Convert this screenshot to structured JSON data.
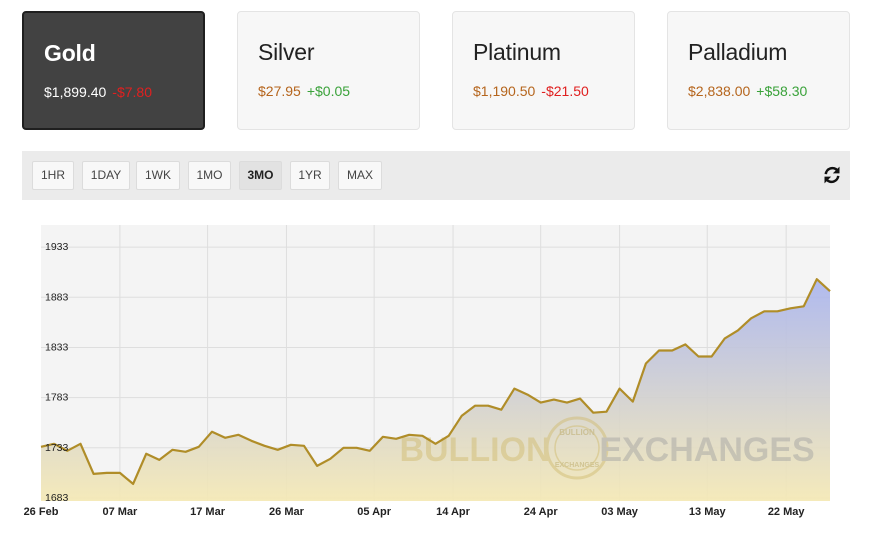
{
  "metals": [
    {
      "name": "Gold",
      "price": "$1,899.40",
      "change": "-$7.80",
      "direction": "neg",
      "active": true
    },
    {
      "name": "Silver",
      "price": "$27.95",
      "change": "+$0.05",
      "direction": "pos",
      "active": false
    },
    {
      "name": "Platinum",
      "price": "$1,190.50",
      "change": "-$21.50",
      "direction": "neg",
      "active": false
    },
    {
      "name": "Palladium",
      "price": "$2,838.00",
      "change": "+$58.30",
      "direction": "pos",
      "active": false
    }
  ],
  "ranges": [
    {
      "label": "1HR",
      "selected": false
    },
    {
      "label": "1DAY",
      "selected": false
    },
    {
      "label": "1WK",
      "selected": false
    },
    {
      "label": "1MO",
      "selected": false
    },
    {
      "label": "3MO",
      "selected": true
    },
    {
      "label": "1YR",
      "selected": false
    },
    {
      "label": "MAX",
      "selected": false
    }
  ],
  "refresh_icon": "refresh-icon",
  "watermark": {
    "left": "BULLION",
    "right": "EXCHANGES",
    "seal_top": "BULLION",
    "seal_bottom": "EXCHANGES"
  },
  "colors": {
    "accent_price": "#b5651d",
    "negative": "#e02020",
    "positive": "#3aa23a",
    "line": "#b08d28",
    "fill_top": "#a9b4ee",
    "fill_bottom": "#f5e9b4"
  },
  "chart_data": {
    "type": "area",
    "title": "",
    "xlabel": "",
    "ylabel": "",
    "yticks": [
      1683,
      1733,
      1783,
      1833,
      1883,
      1933
    ],
    "ylim": [
      1680,
      1955
    ],
    "xlim": [
      "2021-02-26",
      "2021-05-27"
    ],
    "xtick_labels": [
      {
        "date": "2021-02-26",
        "label": "26 Feb"
      },
      {
        "date": "2021-03-07",
        "label": "07 Mar"
      },
      {
        "date": "2021-03-17",
        "label": "17 Mar"
      },
      {
        "date": "2021-03-26",
        "label": "26 Mar"
      },
      {
        "date": "2021-04-05",
        "label": "05 Apr"
      },
      {
        "date": "2021-04-14",
        "label": "14 Apr"
      },
      {
        "date": "2021-04-24",
        "label": "24 Apr"
      },
      {
        "date": "2021-05-03",
        "label": "03 May"
      },
      {
        "date": "2021-05-13",
        "label": "13 May"
      },
      {
        "date": "2021-05-22",
        "label": "22 May"
      }
    ],
    "grid": true,
    "series": [
      {
        "points": [
          [
            "2021-02-26",
            1734
          ],
          [
            "2021-02-27",
            1737
          ],
          [
            "2021-02-28",
            1730
          ],
          [
            "2021-03-01",
            1737
          ],
          [
            "2021-03-02",
            1707
          ],
          [
            "2021-03-03",
            1708
          ],
          [
            "2021-03-04",
            1708
          ],
          [
            "2021-03-05",
            1697
          ],
          [
            "2021-03-06",
            1727
          ],
          [
            "2021-03-07",
            1721
          ],
          [
            "2021-03-08",
            1731
          ],
          [
            "2021-03-09",
            1729
          ],
          [
            "2021-03-10",
            1734
          ],
          [
            "2021-03-11",
            1749
          ],
          [
            "2021-03-12",
            1743
          ],
          [
            "2021-03-13",
            1746
          ],
          [
            "2021-03-14",
            1740
          ],
          [
            "2021-03-15",
            1735
          ],
          [
            "2021-03-16",
            1731
          ],
          [
            "2021-03-17",
            1736
          ],
          [
            "2021-03-18",
            1735
          ],
          [
            "2021-03-19",
            1715
          ],
          [
            "2021-03-20",
            1722
          ],
          [
            "2021-03-21",
            1733
          ],
          [
            "2021-03-22",
            1733
          ],
          [
            "2021-03-23",
            1730
          ],
          [
            "2021-03-24",
            1744
          ],
          [
            "2021-03-25",
            1742
          ],
          [
            "2021-03-26",
            1746
          ],
          [
            "2021-03-27",
            1745
          ],
          [
            "2021-03-28",
            1737
          ],
          [
            "2021-03-29",
            1745
          ],
          [
            "2021-03-30",
            1765
          ],
          [
            "2021-03-31",
            1775
          ],
          [
            "2021-04-01",
            1775
          ],
          [
            "2021-04-02",
            1771
          ],
          [
            "2021-04-03",
            1792
          ],
          [
            "2021-04-04",
            1786
          ],
          [
            "2021-04-05",
            1778
          ],
          [
            "2021-04-06",
            1781
          ],
          [
            "2021-04-07",
            1778
          ],
          [
            "2021-04-08",
            1782
          ],
          [
            "2021-04-09",
            1768
          ],
          [
            "2021-04-10",
            1769
          ],
          [
            "2021-04-11",
            1792
          ],
          [
            "2021-04-12",
            1779
          ],
          [
            "2021-04-13",
            1817
          ],
          [
            "2021-04-14",
            1830
          ],
          [
            "2021-04-15",
            1830
          ],
          [
            "2021-04-16",
            1836
          ],
          [
            "2021-04-17",
            1824
          ],
          [
            "2021-04-18",
            1824
          ],
          [
            "2021-04-19",
            1842
          ],
          [
            "2021-04-20",
            1850
          ],
          [
            "2021-04-21",
            1862
          ],
          [
            "2021-04-22",
            1869
          ],
          [
            "2021-04-23",
            1869
          ],
          [
            "2021-04-24",
            1872
          ],
          [
            "2021-04-25",
            1874
          ],
          [
            "2021-04-26",
            1901
          ],
          [
            "2021-04-27",
            1889
          ]
        ]
      }
    ]
  }
}
